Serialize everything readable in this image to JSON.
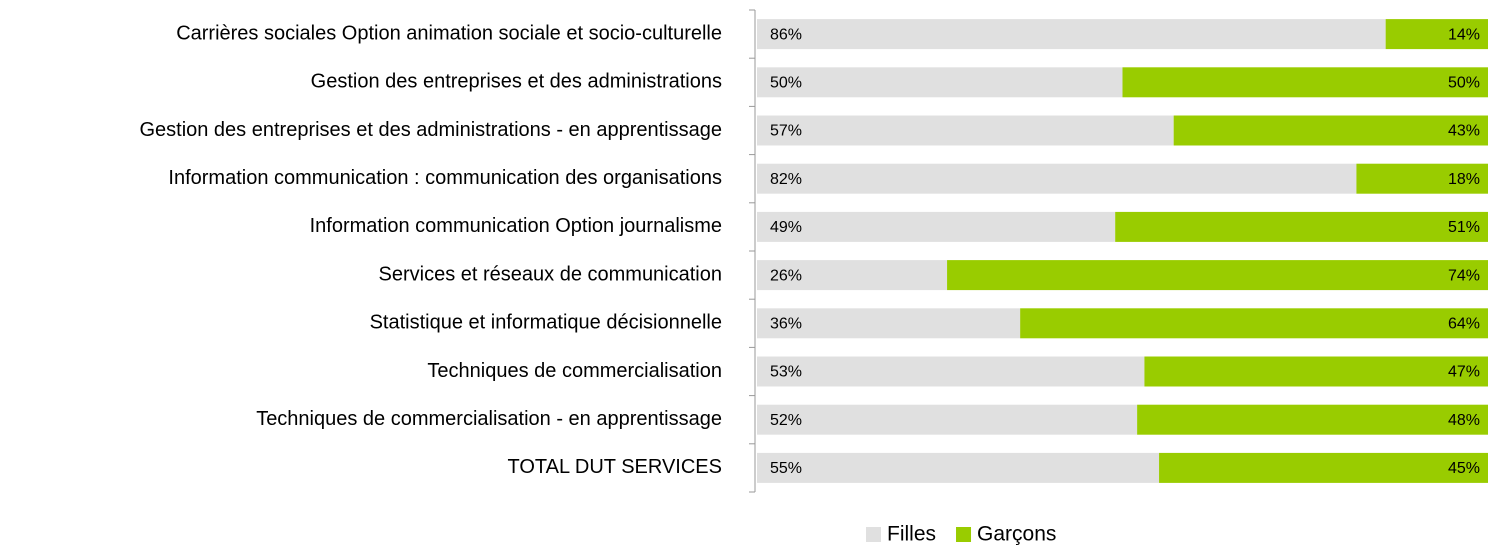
{
  "chart_data": {
    "type": "bar",
    "orientation": "horizontal",
    "stacked": true,
    "categories": [
      "Carrières sociales Option animation sociale et socio-culturelle",
      "Gestion des entreprises et des administrations",
      "Gestion des entreprises et des administrations - en apprentissage",
      "Information communication : communication des organisations",
      "Information communication Option journalisme",
      "Services et réseaux de communication",
      "Statistique et informatique décisionnelle",
      "Techniques de commercialisation",
      "Techniques de commercialisation - en apprentissage",
      "TOTAL DUT SERVICES"
    ],
    "series": [
      {
        "name": "Filles",
        "color": "#e0e0e0",
        "values": [
          86,
          50,
          57,
          82,
          49,
          26,
          36,
          53,
          52,
          55
        ],
        "value_labels": [
          "86%",
          "50%",
          "57%",
          "82%",
          "49%",
          "26%",
          "36%",
          "53%",
          "52%",
          "55%"
        ]
      },
      {
        "name": "Garçons",
        "color": "#99cc00",
        "values": [
          14,
          50,
          43,
          18,
          51,
          74,
          64,
          47,
          48,
          45
        ],
        "value_labels": [
          "14%",
          "50%",
          "43%",
          "18%",
          "51%",
          "74%",
          "64%",
          "47%",
          "48%",
          "45%"
        ]
      }
    ],
    "xlim": [
      0,
      100
    ],
    "legend": "bottom"
  }
}
